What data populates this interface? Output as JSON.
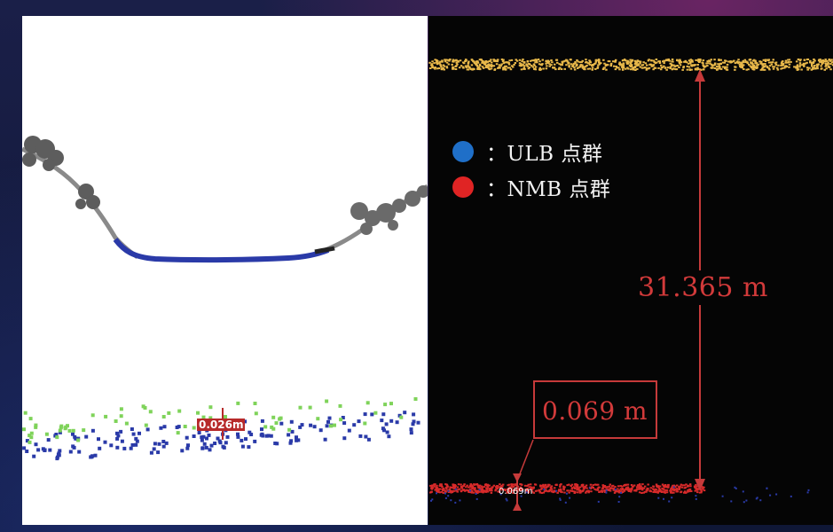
{
  "legend": [
    {
      "label": "：ULB 点群",
      "color": "#1f6fc8"
    },
    {
      "label": "：NMB 点群",
      "color": "#e02424"
    }
  ],
  "measurements": {
    "total_height": "31.365 m",
    "offset": "0.069 m",
    "offset_small_label": "0.069m",
    "left_offset_label": "0.026m"
  },
  "colors": {
    "ulb_points": "#2a3aa8",
    "nmb_points": "#d82a2a",
    "green_points": "#7fd35a",
    "top_points": "#e8b84a",
    "measure_red": "#d23a3a"
  }
}
